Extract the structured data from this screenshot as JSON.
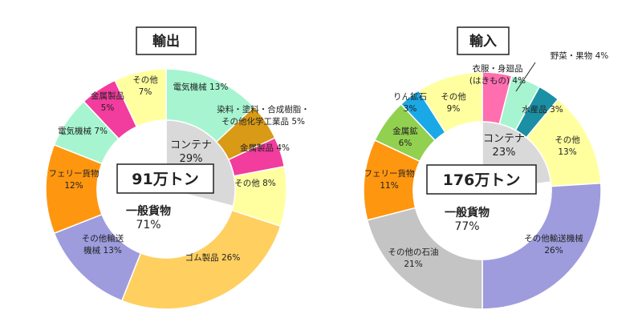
{
  "chart_data": [
    {
      "type": "pie",
      "variant": "nested-donut",
      "title": "輸出",
      "total_label": "91万トン",
      "inner": [
        {
          "label": "コンテナ",
          "value": 29,
          "pct": "29%",
          "color": "#d9d9d9"
        },
        {
          "label": "一般貨物",
          "value": 71,
          "pct": "71%",
          "color": "#ffffff"
        }
      ],
      "outer": [
        {
          "label": "電気機械",
          "value": 13,
          "pct": "13%",
          "color": "#a6f5d0"
        },
        {
          "label": "染料・塗料・合成樹脂・その他化学工業品",
          "value": 5,
          "pct": "5%",
          "color": "#d99a16"
        },
        {
          "label": "金属製品",
          "value": 4,
          "pct": "4%",
          "color": "#f23c9e"
        },
        {
          "label": "その他",
          "value": 8,
          "pct": "8%",
          "color": "#ffff9f"
        },
        {
          "label": "ゴム製品",
          "value": 26,
          "pct": "26%",
          "color": "#ffcf60"
        },
        {
          "label": "その他輸送機械",
          "value": 13,
          "pct": "13%",
          "color": "#9e9cdd"
        },
        {
          "label": "フェリー貨物",
          "value": 12,
          "pct": "12%",
          "color": "#ff960f"
        },
        {
          "label": "電気機械",
          "value": 7,
          "pct": "7%",
          "color": "#a6f5d0"
        },
        {
          "label": "金属製品",
          "value": 5,
          "pct": "5%",
          "color": "#f23c9e"
        },
        {
          "label": "その他",
          "value": 7,
          "pct": "7%",
          "color": "#ffff9f"
        }
      ]
    },
    {
      "type": "pie",
      "variant": "nested-donut",
      "title": "輸入",
      "total_label": "176万トン",
      "inner": [
        {
          "label": "コンテナ",
          "value": 23,
          "pct": "23%",
          "color": "#d9d9d9"
        },
        {
          "label": "一般貨物",
          "value": 77,
          "pct": "77%",
          "color": "#ffffff"
        }
      ],
      "outer": [
        {
          "label": "衣服・身廻品（はきもの）",
          "value": 4,
          "pct": "4%",
          "color": "#ff6fb0"
        },
        {
          "label": "野菜・果物",
          "value": 4,
          "pct": "4%",
          "color": "#a6f5d0"
        },
        {
          "label": "水産品",
          "value": 3,
          "pct": "3%",
          "color": "#1b8fa3"
        },
        {
          "label": "その他",
          "value": 13,
          "pct": "13%",
          "color": "#ffff9f"
        },
        {
          "label": "その他輸送機械",
          "value": 26,
          "pct": "26%",
          "color": "#9e9cdd"
        },
        {
          "label": "その他の石油",
          "value": 21,
          "pct": "21%",
          "color": "#c4c4c4"
        },
        {
          "label": "フェリー貨物",
          "value": 11,
          "pct": "11%",
          "color": "#ff960f"
        },
        {
          "label": "金属鉱",
          "value": 6,
          "pct": "6%",
          "color": "#92d050"
        },
        {
          "label": "りん鉱石",
          "value": 3,
          "pct": "3%",
          "color": "#1aa9e6"
        },
        {
          "label": "その他",
          "value": 9,
          "pct": "9%",
          "color": "#ffff9f"
        }
      ]
    }
  ]
}
